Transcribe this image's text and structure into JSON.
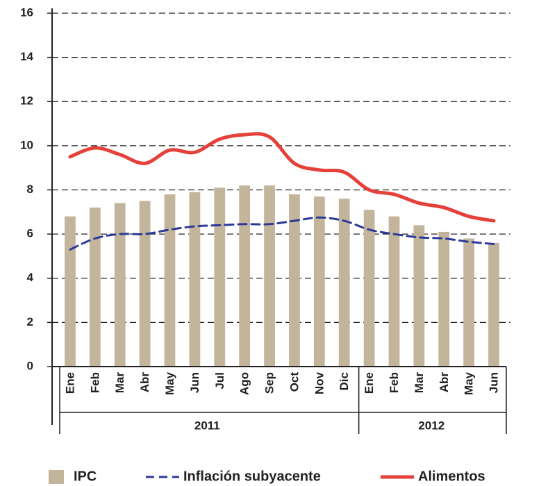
{
  "chart_data": {
    "type": "bar_line",
    "categories": [
      "Ene",
      "Feb",
      "Mar",
      "Abr",
      "May",
      "Jun",
      "Jul",
      "Ago",
      "Sep",
      "Oct",
      "Nov",
      "Dic",
      "Ene",
      "Feb",
      "Mar",
      "Abr",
      "May",
      "Jun"
    ],
    "groups": [
      "2011",
      "2012"
    ],
    "series": [
      {
        "name": "IPC",
        "type": "bar",
        "color": "#c3b59b",
        "values": [
          6.8,
          7.2,
          7.4,
          7.5,
          7.8,
          7.9,
          8.1,
          8.2,
          8.2,
          7.8,
          7.7,
          7.6,
          7.1,
          6.8,
          6.4,
          6.1,
          5.8,
          5.6
        ]
      },
      {
        "name": "Inflación subyacente",
        "type": "line",
        "dashed": true,
        "color": "#2b3a98",
        "values": [
          5.3,
          5.8,
          6.0,
          6.0,
          6.2,
          6.35,
          6.4,
          6.45,
          6.45,
          6.6,
          6.75,
          6.6,
          6.2,
          6.0,
          5.85,
          5.8,
          5.65,
          5.55
        ]
      },
      {
        "name": "Alimentos",
        "type": "line",
        "dashed": false,
        "color": "#e5403a",
        "values": [
          9.5,
          9.9,
          9.6,
          9.2,
          9.8,
          9.7,
          10.3,
          10.5,
          10.4,
          9.2,
          8.9,
          8.8,
          8.0,
          7.8,
          7.4,
          7.2,
          6.8,
          6.6
        ]
      }
    ],
    "ylim": [
      0,
      16
    ],
    "yticks": [
      0,
      2,
      4,
      6,
      8,
      10,
      12,
      14,
      16
    ],
    "grid": true
  }
}
